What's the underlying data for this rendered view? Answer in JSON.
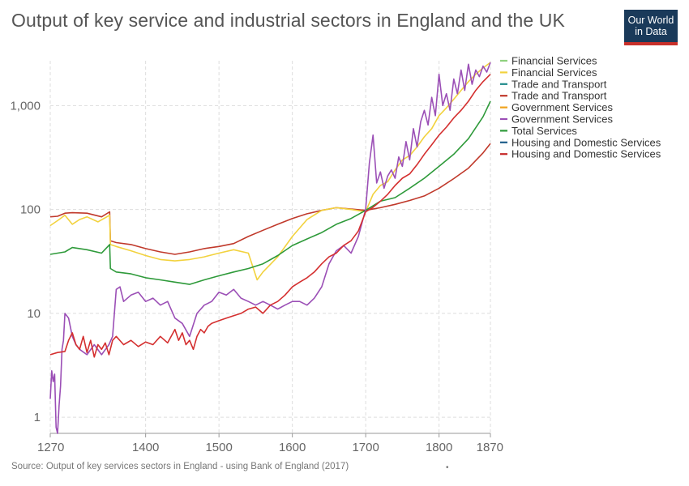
{
  "title": "Output of key service and industrial sectors in England and the UK",
  "logo": {
    "line1": "Our World",
    "line2": "in Data"
  },
  "source": "Source: Output of key services sectors in England - using Bank of England (2017)",
  "footer_mark": "•",
  "chart_data": {
    "type": "line",
    "title": "Output of key service and industrial sectors in England and the UK",
    "xlabel": "",
    "ylabel": "",
    "yscale": "log",
    "xlim": [
      1270,
      1870
    ],
    "ylim": [
      0.7,
      2700
    ],
    "x_ticks": [
      1270,
      1400,
      1500,
      1600,
      1700,
      1800,
      1870
    ],
    "y_ticks": [
      1,
      10,
      100,
      1000
    ],
    "y_tick_labels": [
      "1",
      "10",
      "100",
      "1,000"
    ],
    "grid": true,
    "legend_position": "right",
    "legend": [
      {
        "label": "Financial Services",
        "color": "#8fd17e"
      },
      {
        "label": "Financial Services",
        "color": "#f2d23e"
      },
      {
        "label": "Trade and Transport",
        "color": "#1f8a8a"
      },
      {
        "label": "Trade and Transport",
        "color": "#c0392b"
      },
      {
        "label": "Government Services",
        "color": "#f0a31d"
      },
      {
        "label": "Government Services",
        "color": "#9b4fb6"
      },
      {
        "label": "Total Services",
        "color": "#2e9a3a"
      },
      {
        "label": "Housing and Domestic Services",
        "color": "#1f5e8a"
      },
      {
        "label": "Housing and Domestic Services",
        "color": "#c62a2a"
      }
    ],
    "series": [
      {
        "color": "#c0392b",
        "x": [
          1270,
          1280,
          1290,
          1300,
          1320,
          1340,
          1351,
          1352,
          1360,
          1380,
          1400,
          1420,
          1440,
          1460,
          1480,
          1500,
          1520,
          1540,
          1560,
          1580,
          1600,
          1620,
          1640,
          1660,
          1680,
          1700,
          1720,
          1740,
          1760,
          1780,
          1800,
          1820,
          1840,
          1860,
          1870
        ],
        "y": [
          85,
          86,
          92,
          93,
          92,
          85,
          95,
          50,
          48,
          46,
          42,
          39,
          37,
          39,
          42,
          44,
          47,
          55,
          63,
          72,
          82,
          91,
          98,
          104,
          101,
          98,
          104,
          112,
          122,
          135,
          160,
          198,
          250,
          350,
          430
        ]
      },
      {
        "color": "#f2d23e",
        "x": [
          1270,
          1280,
          1290,
          1300,
          1310,
          1320,
          1335,
          1351,
          1352,
          1360,
          1380,
          1400,
          1420,
          1440,
          1460,
          1480,
          1500,
          1520,
          1540,
          1552,
          1560,
          1580,
          1600,
          1620,
          1640,
          1660,
          1680,
          1700,
          1710,
          1720,
          1730,
          1740,
          1750,
          1760,
          1770,
          1780,
          1790,
          1800,
          1810,
          1820,
          1830,
          1840,
          1850,
          1860,
          1870
        ],
        "y": [
          70,
          78,
          88,
          72,
          80,
          85,
          76,
          88,
          46,
          44,
          40,
          36,
          33,
          32,
          33,
          35,
          38,
          41,
          38,
          21,
          25,
          35,
          55,
          80,
          98,
          104,
          100,
          95,
          140,
          170,
          185,
          240,
          300,
          330,
          400,
          500,
          600,
          800,
          950,
          1150,
          1400,
          1700,
          2000,
          2300,
          2600
        ]
      },
      {
        "color": "#2e9a3a",
        "x": [
          1270,
          1290,
          1300,
          1320,
          1340,
          1351,
          1352,
          1360,
          1380,
          1400,
          1420,
          1440,
          1460,
          1480,
          1500,
          1520,
          1540,
          1560,
          1580,
          1600,
          1620,
          1640,
          1660,
          1680,
          1700,
          1720,
          1740,
          1760,
          1780,
          1800,
          1820,
          1840,
          1860,
          1870
        ],
        "y": [
          37,
          39,
          43,
          41,
          38,
          46,
          27,
          25,
          24,
          22,
          21,
          20,
          19,
          21,
          23,
          25,
          27,
          30,
          36,
          45,
          52,
          60,
          72,
          82,
          98,
          120,
          130,
          160,
          200,
          260,
          340,
          480,
          780,
          1100
        ]
      },
      {
        "color": "#9b4fb6",
        "x": [
          1270,
          1272,
          1274,
          1276,
          1278,
          1280,
          1282,
          1284,
          1286,
          1288,
          1290,
          1295,
          1300,
          1305,
          1310,
          1320,
          1330,
          1340,
          1350,
          1355,
          1360,
          1365,
          1370,
          1380,
          1390,
          1400,
          1410,
          1420,
          1430,
          1440,
          1450,
          1460,
          1470,
          1480,
          1490,
          1500,
          1510,
          1520,
          1530,
          1540,
          1550,
          1560,
          1570,
          1580,
          1590,
          1600,
          1610,
          1620,
          1630,
          1640,
          1650,
          1660,
          1670,
          1680,
          1690,
          1700,
          1705,
          1710,
          1715,
          1720,
          1725,
          1730,
          1735,
          1740,
          1745,
          1750,
          1755,
          1760,
          1765,
          1770,
          1775,
          1780,
          1785,
          1790,
          1795,
          1800,
          1805,
          1810,
          1815,
          1820,
          1825,
          1830,
          1835,
          1840,
          1845,
          1850,
          1855,
          1860,
          1865,
          1870
        ],
        "y": [
          1.5,
          2.8,
          2.2,
          2.6,
          0.8,
          0.7,
          1.3,
          2.0,
          4.5,
          5.5,
          10,
          9,
          6,
          5,
          4.5,
          4,
          5,
          4,
          5,
          6,
          17,
          18,
          13,
          15,
          16,
          13,
          14,
          12,
          13,
          9,
          8,
          6,
          10,
          12,
          13,
          16,
          15,
          17,
          14,
          13,
          12,
          13,
          12,
          11,
          12,
          13,
          13,
          12,
          14,
          18,
          30,
          40,
          45,
          38,
          55,
          100,
          280,
          520,
          180,
          230,
          160,
          210,
          240,
          200,
          320,
          260,
          450,
          300,
          600,
          400,
          700,
          900,
          650,
          1200,
          800,
          2000,
          1000,
          1300,
          900,
          1800,
          1300,
          2200,
          1400,
          2500,
          1600,
          2200,
          1900,
          2400,
          2100,
          2600
        ]
      },
      {
        "color": "#d42f2f",
        "x": [
          1270,
          1280,
          1290,
          1295,
          1300,
          1305,
          1310,
          1315,
          1320,
          1325,
          1330,
          1335,
          1340,
          1345,
          1350,
          1355,
          1360,
          1370,
          1380,
          1390,
          1400,
          1410,
          1420,
          1430,
          1440,
          1445,
          1450,
          1455,
          1460,
          1465,
          1470,
          1475,
          1480,
          1485,
          1490,
          1500,
          1510,
          1520,
          1530,
          1540,
          1550,
          1560,
          1570,
          1580,
          1590,
          1600,
          1610,
          1620,
          1630,
          1640,
          1650,
          1660,
          1670,
          1680,
          1690,
          1700,
          1710,
          1720,
          1730,
          1740,
          1750,
          1760,
          1770,
          1780,
          1790,
          1800,
          1810,
          1820,
          1830,
          1840,
          1850,
          1860,
          1870
        ],
        "y": [
          4,
          4.2,
          4.3,
          5.5,
          6.5,
          5,
          4.5,
          6,
          4.2,
          5.5,
          3.8,
          5,
          4.5,
          5.2,
          4,
          5.5,
          6,
          5,
          5.5,
          4.8,
          5.3,
          5,
          6,
          5.2,
          7,
          5.5,
          6.5,
          5,
          5.5,
          4.5,
          6,
          7,
          6.5,
          7.5,
          8,
          8.5,
          9,
          9.5,
          10,
          11,
          11.5,
          10,
          12,
          13,
          15,
          18,
          20,
          22,
          25,
          30,
          35,
          38,
          45,
          50,
          62,
          95,
          105,
          120,
          140,
          170,
          200,
          220,
          270,
          340,
          420,
          520,
          620,
          760,
          900,
          1100,
          1400,
          1700,
          2000
        ]
      }
    ]
  }
}
